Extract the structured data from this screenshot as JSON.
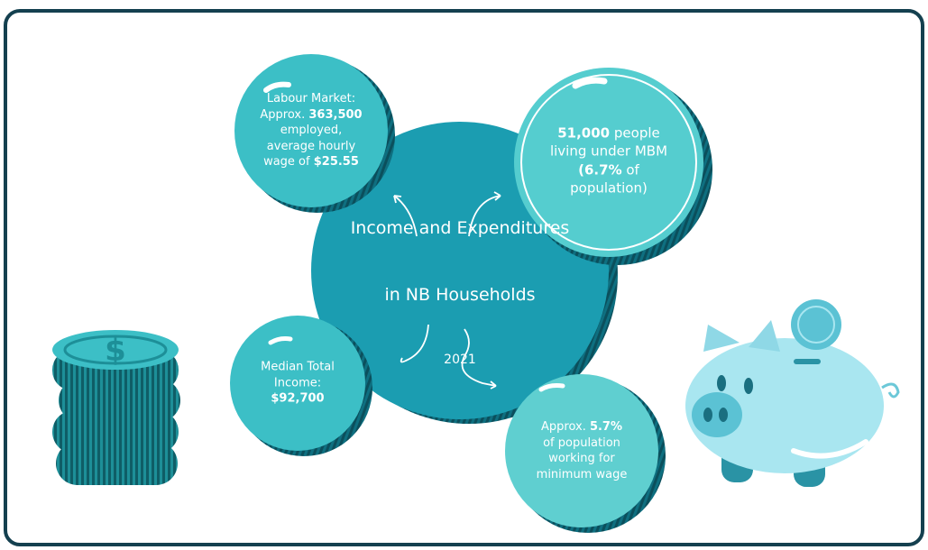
{
  "title": {
    "line1": "Income and Expenditures",
    "line2": "in NB Households",
    "year": "2021"
  },
  "bubbles": [
    {
      "lines": [
        [
          {
            "t": "Labour Market:"
          }
        ],
        [
          {
            "t": "Approx. "
          },
          {
            "t": "363,500",
            "bold": true
          }
        ],
        [
          {
            "t": "employed,"
          }
        ],
        [
          {
            "t": "average hourly"
          }
        ],
        [
          {
            "t": "wage of "
          },
          {
            "t": "$25.55",
            "bold": true
          }
        ]
      ]
    },
    {
      "lines": [
        [
          {
            "t": "51,000",
            "bold": true
          },
          {
            "t": " people"
          }
        ],
        [
          {
            "t": "living under MBM"
          }
        ],
        [
          {
            "t": "(6.7%",
            "bold": true
          },
          {
            "t": " of"
          }
        ],
        [
          {
            "t": "population)"
          }
        ]
      ]
    },
    {
      "lines": [
        [
          {
            "t": "Median Total"
          }
        ],
        [
          {
            "t": "Income:"
          }
        ],
        [
          {
            "t": "$92,700",
            "bold": true
          }
        ]
      ]
    },
    {
      "lines": [
        [
          {
            "t": "Approx. "
          },
          {
            "t": "5.7%",
            "bold": true
          }
        ],
        [
          {
            "t": "of population"
          }
        ],
        [
          {
            "t": "working for"
          }
        ],
        [
          {
            "t": "minimum wage"
          }
        ]
      ]
    }
  ]
}
